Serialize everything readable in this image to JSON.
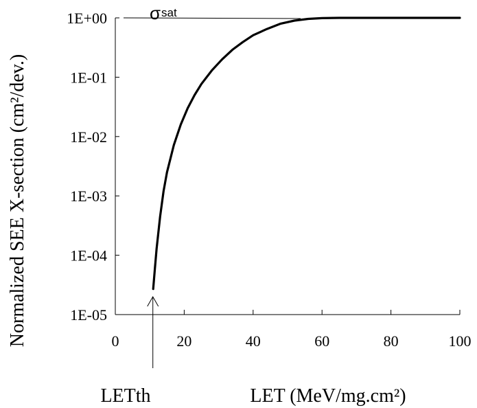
{
  "chart_data": {
    "type": "line",
    "title": "",
    "xlabel": "LET (MeV/mg.cm²)",
    "ylabel": "Normalized SEE X-section (cm²/dev.)",
    "xlim": [
      0,
      100
    ],
    "ylim": [
      1e-05,
      1
    ],
    "yscale": "log",
    "grid": false,
    "x_ticks": [
      0,
      20,
      40,
      60,
      80,
      100
    ],
    "x_tick_labels": [
      "0",
      "20",
      "40",
      "60",
      "80",
      "100"
    ],
    "y_ticks": [
      1e-05,
      0.0001,
      0.001,
      0.01,
      0.1,
      1
    ],
    "y_tick_labels": [
      "1E-05",
      "1E-04",
      "1E-03",
      "1E-02",
      "1E-01",
      "1E+00"
    ],
    "series": [
      {
        "x": [
          11,
          11.5,
          12,
          13,
          14,
          15,
          17,
          19,
          21,
          23,
          25,
          28,
          31,
          34,
          37,
          40,
          44,
          48,
          52,
          56,
          60,
          65,
          70,
          80,
          90,
          100
        ],
        "y": [
          2.7e-05,
          6e-05,
          0.00013,
          0.00045,
          0.0012,
          0.0025,
          0.0072,
          0.016,
          0.03,
          0.05,
          0.077,
          0.13,
          0.2,
          0.29,
          0.39,
          0.51,
          0.65,
          0.8,
          0.9,
          0.96,
          0.99,
          1.0,
          1.0,
          1.0,
          1.0,
          1.0
        ],
        "color": "#000000"
      }
    ],
    "annotations": {
      "sigma_sat": {
        "symbol": "σ",
        "subscript": "sat",
        "y": 1
      },
      "let_threshold": {
        "label": "LETth",
        "x": 11
      }
    }
  }
}
